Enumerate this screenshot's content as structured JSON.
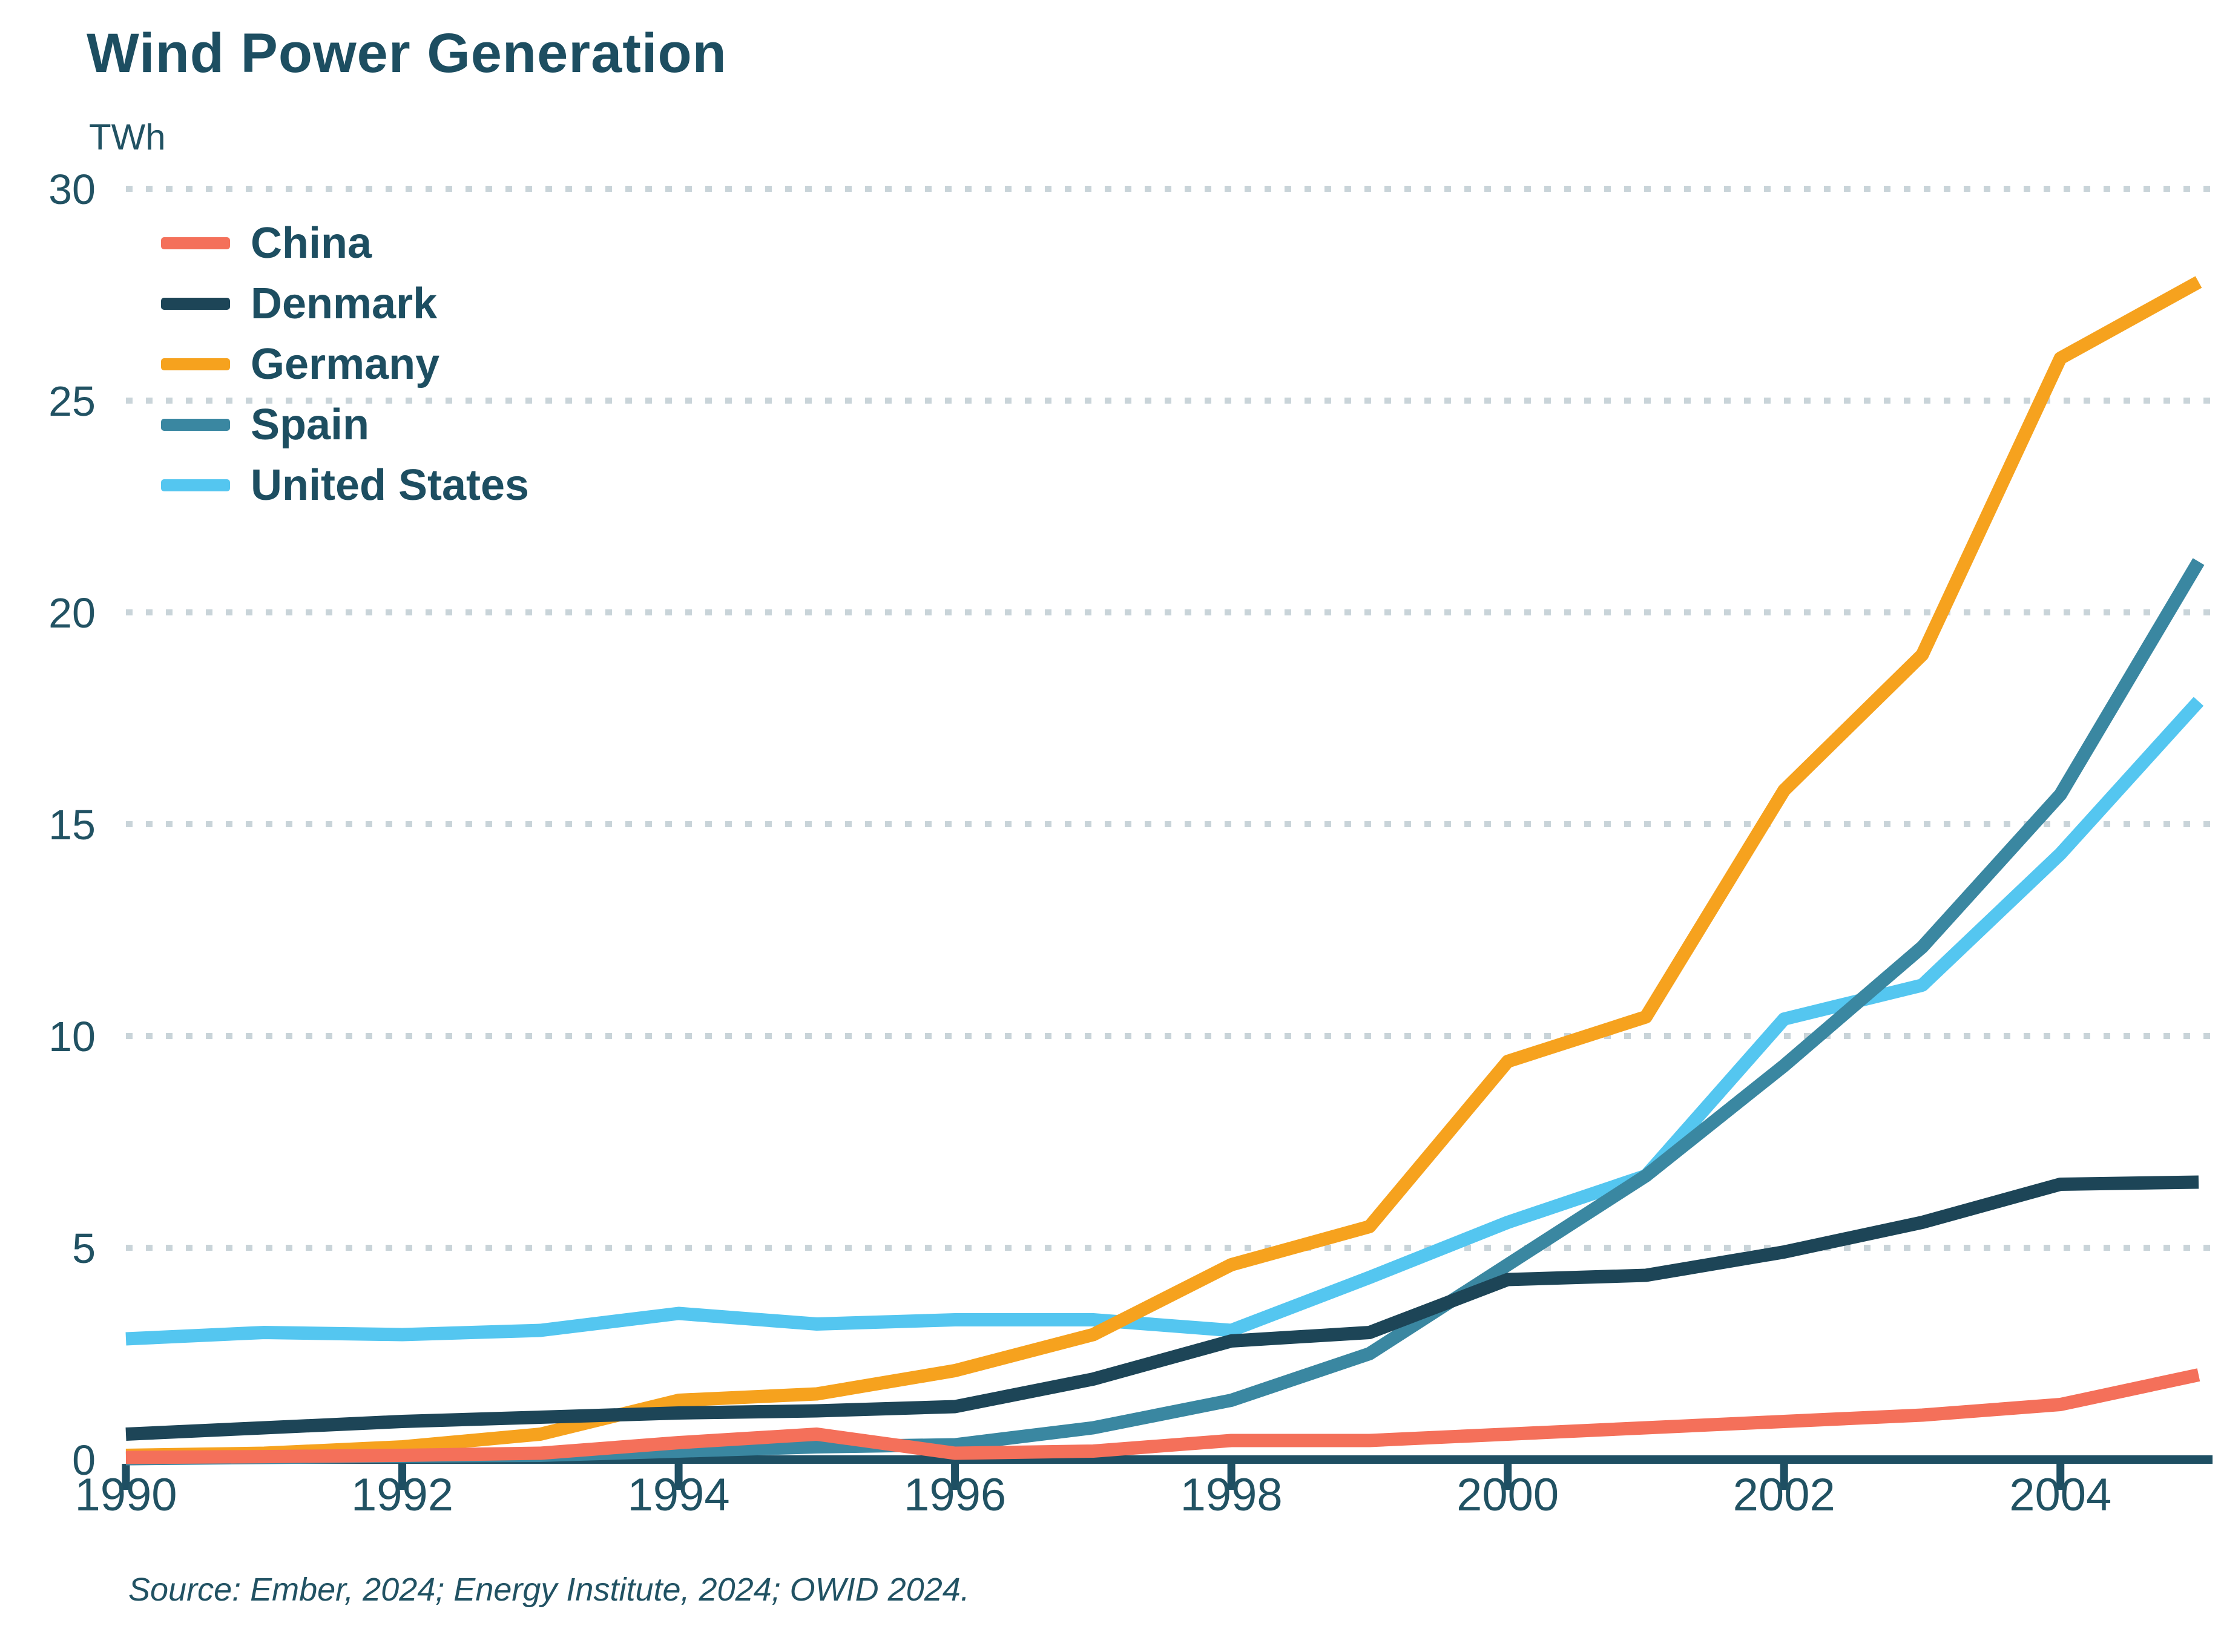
{
  "chart_data": {
    "type": "line",
    "title": "Wind Power Generation",
    "unit_label": "TWh",
    "xlabel": "",
    "ylabel": "TWh",
    "xlim": [
      1990,
      2005
    ],
    "ylim": [
      0,
      30
    ],
    "grid": "horizontal dotted gridlines at every 5 TWh",
    "legend_position": "top-left inside plot area, no background box",
    "x": [
      1990,
      1991,
      1992,
      1993,
      1994,
      1995,
      1996,
      1997,
      1998,
      1999,
      2000,
      2001,
      2002,
      2003,
      2004,
      2005
    ],
    "x_ticks": [
      1990,
      1992,
      1994,
      1996,
      1998,
      2000,
      2002,
      2004
    ],
    "y_ticks": [
      0,
      5,
      10,
      15,
      20,
      25,
      30
    ],
    "series": [
      {
        "name": "China",
        "color": "#f4705a",
        "values": [
          0.05,
          0.07,
          0.1,
          0.15,
          0.4,
          0.6,
          0.15,
          0.2,
          0.45,
          0.45,
          0.6,
          0.75,
          0.9,
          1.05,
          1.3,
          2.0
        ]
      },
      {
        "name": "Denmark",
        "color": "#1d4557",
        "values": [
          0.6,
          0.75,
          0.9,
          1.0,
          1.1,
          1.15,
          1.25,
          1.9,
          2.8,
          3.0,
          4.25,
          4.35,
          4.9,
          5.6,
          6.5,
          6.55
        ]
      },
      {
        "name": "Germany",
        "color": "#f6a21e",
        "values": [
          0.1,
          0.15,
          0.3,
          0.6,
          1.4,
          1.55,
          2.1,
          2.95,
          4.6,
          5.5,
          9.4,
          10.45,
          15.8,
          19.0,
          26.0,
          27.8
        ]
      },
      {
        "name": "Spain",
        "color": "#3a87a1",
        "values": [
          0.02,
          0.05,
          0.08,
          0.1,
          0.2,
          0.3,
          0.35,
          0.75,
          1.4,
          2.5,
          4.6,
          6.7,
          9.3,
          12.1,
          15.7,
          21.2
        ]
      },
      {
        "name": "United States",
        "color": "#54c6f0",
        "values": [
          2.85,
          3.0,
          2.95,
          3.05,
          3.45,
          3.2,
          3.3,
          3.3,
          3.05,
          4.3,
          5.6,
          6.7,
          10.4,
          11.2,
          14.3,
          17.9
        ]
      }
    ],
    "draw_order": [
      "United States",
      "Spain",
      "Germany",
      "Denmark",
      "China"
    ],
    "colors": {
      "title_text": "#1d4e61",
      "axis_text": "#215263",
      "axis_line": "#1e4f63",
      "gridline": "#c9d4d9",
      "background": "#ffffff"
    },
    "source_note": "Source: Ember, 2024; Energy Institute, 2024; OWID 2024."
  }
}
